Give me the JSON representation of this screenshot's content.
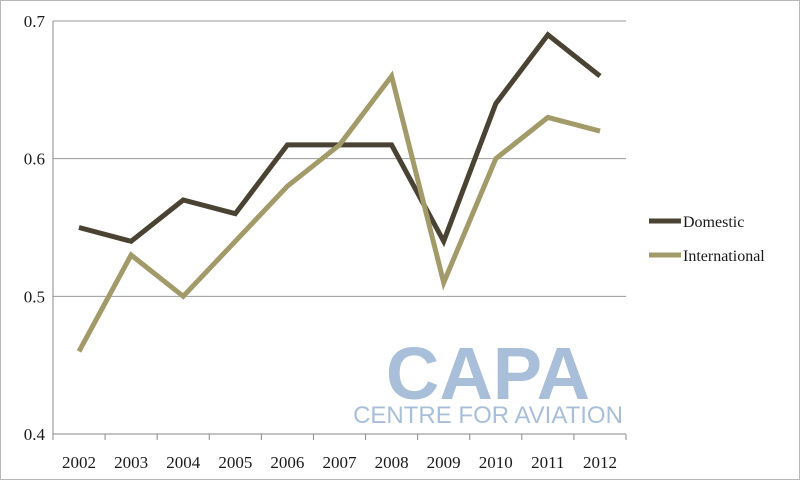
{
  "chart_data": {
    "type": "line",
    "categories": [
      "2002",
      "2003",
      "2004",
      "2005",
      "2006",
      "2007",
      "2008",
      "2009",
      "2010",
      "2011",
      "2012"
    ],
    "series": [
      {
        "name": "Domestic",
        "color": "#4a4232",
        "values": [
          0.55,
          0.54,
          0.57,
          0.56,
          0.61,
          0.61,
          0.61,
          0.54,
          0.64,
          0.69,
          0.66
        ]
      },
      {
        "name": "International",
        "color": "#a39a6a",
        "values": [
          0.46,
          0.53,
          0.5,
          0.54,
          0.58,
          0.61,
          0.66,
          0.51,
          0.6,
          0.63,
          0.62
        ]
      }
    ],
    "ylim": [
      0.4,
      0.7
    ],
    "yticks": [
      "0.4",
      "0.5",
      "0.6",
      "0.7"
    ],
    "grid": true,
    "legend": "right"
  },
  "watermark": {
    "logo": "CAPA",
    "tagline": "CENTRE FOR AVIATION",
    "color": "#a9bfd9"
  }
}
